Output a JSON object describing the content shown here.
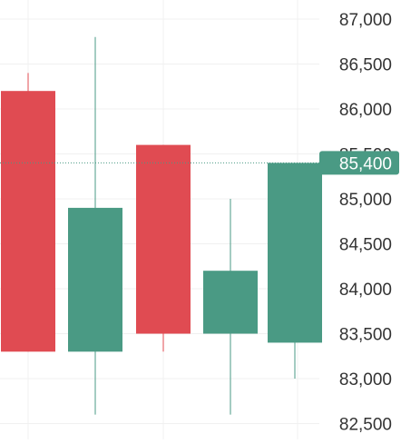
{
  "chart_data": {
    "type": "candlestick",
    "ylim": [
      82400,
      87200
    ],
    "yticks": [
      87000,
      86500,
      86000,
      85500,
      85000,
      84500,
      84000,
      83500,
      83000,
      82500
    ],
    "ytick_labels": [
      "87,000",
      "86,500",
      "86,000",
      "85,500",
      "85,000",
      "84,500",
      "84,000",
      "83,500",
      "83,000",
      "82,500"
    ],
    "grid": true,
    "candles": [
      {
        "open": 86200,
        "close": 83300,
        "high": 86400,
        "low": 83300,
        "direction": "down"
      },
      {
        "open": 83300,
        "close": 84900,
        "high": 86800,
        "low": 82600,
        "direction": "up"
      },
      {
        "open": 85600,
        "close": 83500,
        "high": 85600,
        "low": 83300,
        "direction": "down"
      },
      {
        "open": 83500,
        "close": 84200,
        "high": 85000,
        "low": 82600,
        "direction": "up"
      },
      {
        "open": 83400,
        "close": 85400,
        "high": 85400,
        "low": 83000,
        "direction": "up"
      }
    ],
    "last_price": {
      "value": 85400,
      "label": "85,400"
    }
  },
  "colors": {
    "up": "#4a9a84",
    "down": "#e04b52",
    "grid": "#f0f0f0",
    "axis_text": "#333333",
    "price_line": "#4a9a84",
    "price_label_bg": "#4a9a84",
    "price_label_text": "#ffffff"
  }
}
